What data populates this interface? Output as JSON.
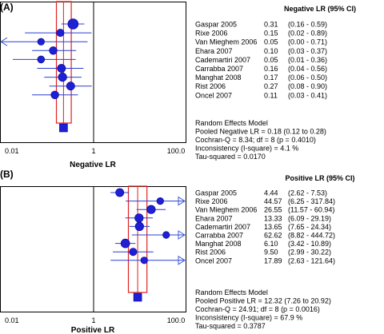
{
  "colors": {
    "marker": "#1f1fd6",
    "ci_line": "#2d3fd0",
    "pooled_band": "#e02020",
    "frame": "#000000",
    "arrow": "#3b5bd6"
  },
  "chart_data": [
    {
      "type": "forest",
      "panel_label": "(A)",
      "scale": "log",
      "xlim": [
        0.01,
        100.0
      ],
      "ticks": [
        {
          "value": 0.01,
          "label": "0.01"
        },
        {
          "value": 1,
          "label": "1"
        },
        {
          "value": 100,
          "label": "100.0"
        }
      ],
      "xlabel": "Negative LR",
      "header": "Negative LR (95% CI)",
      "studies": [
        {
          "name": "Gaspar 2005",
          "est": 0.31,
          "lo": 0.16,
          "hi": 0.59,
          "est_text": "0.31",
          "ci_text": "(0.16 - 0.59)",
          "weight": 1.0
        },
        {
          "name": "Rixe 2006",
          "est": 0.15,
          "lo": 0.02,
          "hi": 0.89,
          "est_text": "0.15",
          "ci_text": "(0.02 - 0.89)",
          "weight": 0.55
        },
        {
          "name": "Van Mieghem 2006",
          "est": 0.05,
          "lo": 0.0,
          "hi": 0.71,
          "est_text": "0.05",
          "ci_text": "(0.00 - 0.71)",
          "weight": 0.45
        },
        {
          "name": "Ehara 2007",
          "est": 0.1,
          "lo": 0.03,
          "hi": 0.37,
          "est_text": "0.10",
          "ci_text": "(0.03 - 0.37)",
          "weight": 0.6
        },
        {
          "name": "Cademartiri 2007",
          "est": 0.05,
          "lo": 0.01,
          "hi": 0.36,
          "est_text": "0.05",
          "ci_text": "(0.01 - 0.36)",
          "weight": 0.5
        },
        {
          "name": "Carrabba 2007",
          "est": 0.16,
          "lo": 0.04,
          "hi": 0.56,
          "est_text": "0.16",
          "ci_text": "(0.04 - 0.56)",
          "weight": 0.65
        },
        {
          "name": "Manghat 2008",
          "est": 0.17,
          "lo": 0.06,
          "hi": 0.5,
          "est_text": "0.17",
          "ci_text": "(0.06 - 0.50)",
          "weight": 0.7
        },
        {
          "name": "Rist 2006",
          "est": 0.27,
          "lo": 0.08,
          "hi": 0.9,
          "est_text": "0.27",
          "ci_text": "(0.08 - 0.90)",
          "weight": 0.65
        },
        {
          "name": "Oncel 2007",
          "est": 0.11,
          "lo": 0.03,
          "hi": 0.41,
          "est_text": "0.11",
          "ci_text": "(0.03 - 0.41)",
          "weight": 0.6
        }
      ],
      "pooled": {
        "est": 0.18,
        "lo": 0.12,
        "hi": 0.28
      },
      "summary": [
        "Random Effects Model",
        "Pooled Negative LR = 0.18 (0.12 to 0.28)",
        "Cochran-Q = 8.34; df = 8 (p = 0.4010)",
        "Inconsistency (I-square) = 4.1 %",
        "Tau-squared = 0.0170"
      ]
    },
    {
      "type": "forest",
      "panel_label": "(B)",
      "scale": "log",
      "xlim": [
        0.01,
        100.0
      ],
      "ticks": [
        {
          "value": 0.01,
          "label": "0.01"
        },
        {
          "value": 1,
          "label": "1"
        },
        {
          "value": 100,
          "label": "100.0"
        }
      ],
      "xlabel": "Positive LR",
      "header": "Positive LR (95% CI)",
      "studies": [
        {
          "name": "Gaspar 2005",
          "est": 4.44,
          "lo": 2.62,
          "hi": 7.53,
          "est_text": "4.44",
          "ci_text": "(2.62 - 7.53)",
          "weight": 0.65
        },
        {
          "name": "Rixe 2006",
          "est": 44.57,
          "lo": 6.25,
          "hi": 317.84,
          "est_text": "44.57",
          "ci_text": "(6.25 - 317.84)",
          "weight": 0.45
        },
        {
          "name": "Van Mieghem 2006",
          "est": 26.55,
          "lo": 11.57,
          "hi": 60.94,
          "est_text": "26.55",
          "ci_text": "(11.57 - 60.94)",
          "weight": 0.7
        },
        {
          "name": "Ehara 2007",
          "est": 13.33,
          "lo": 6.09,
          "hi": 29.19,
          "est_text": "13.33",
          "ci_text": "(6.09 - 29.19)",
          "weight": 0.7
        },
        {
          "name": "Cademartiri 2007",
          "est": 13.65,
          "lo": 7.65,
          "hi": 24.34,
          "est_text": "13.65",
          "ci_text": "(7.65 - 24.34)",
          "weight": 0.7
        },
        {
          "name": "Carrabba 2007",
          "est": 62.62,
          "lo": 8.82,
          "hi": 444.72,
          "est_text": "62.62",
          "ci_text": "(8.82 - 444.72)",
          "weight": 0.45
        },
        {
          "name": "Manghat 2008",
          "est": 6.1,
          "lo": 3.42,
          "hi": 10.89,
          "est_text": "6.10",
          "ci_text": "(3.42 - 10.89)",
          "weight": 0.75
        },
        {
          "name": "Rist 2006",
          "est": 9.5,
          "lo": 2.99,
          "hi": 30.22,
          "est_text": "9.50",
          "ci_text": "(2.99 - 30.22)",
          "weight": 0.55
        },
        {
          "name": "Oncel 2007",
          "est": 17.89,
          "lo": 2.63,
          "hi": 121.64,
          "est_text": "17.89",
          "ci_text": "(2.63 - 121.64)",
          "weight": 0.45
        }
      ],
      "pooled": {
        "est": 12.32,
        "lo": 7.26,
        "hi": 20.92
      },
      "summary": [
        "Random Effects Model",
        "Pooled Positive LR = 12.32 (7.26 to 20.92)",
        "Cochran-Q = 24.91; df = 8 (p = 0.0016)",
        "Inconsistency (I-square) = 67.9 %",
        "Tau-squared = 0.3787"
      ]
    }
  ]
}
